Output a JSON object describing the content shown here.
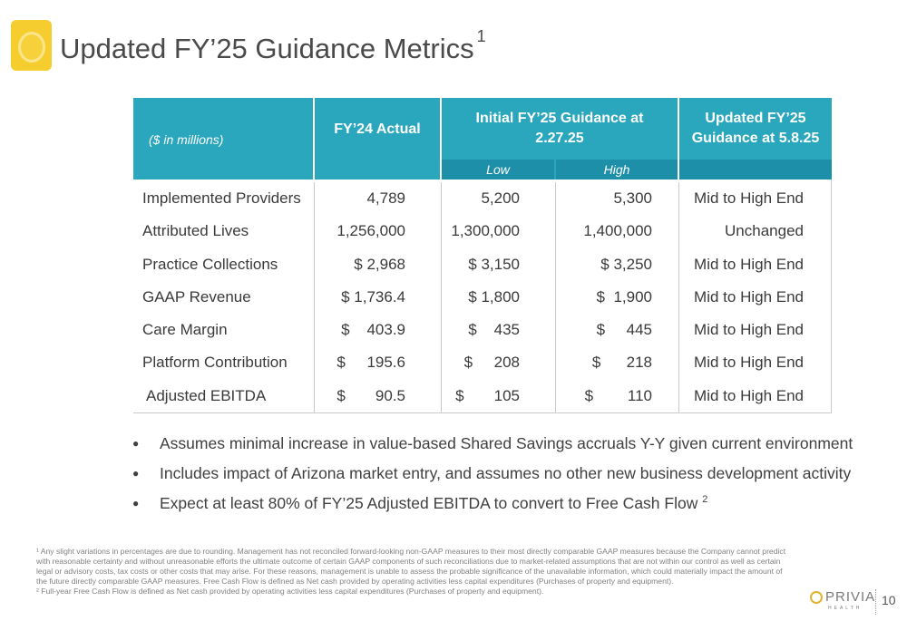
{
  "title": "Updated FY’25 Guidance Metrics",
  "title_sup": "1",
  "table": {
    "unit_label": "($ in millions)",
    "col_fy24": "FY’24 Actual",
    "col_initial": "Initial FY’25 Guidance at 2.27.25",
    "col_updated": "Updated FY’25 Guidance at 5.8.25",
    "sub_low": "Low",
    "sub_high": "High",
    "rows": [
      {
        "label": "Implemented Providers",
        "fy24": "4,789",
        "low": "5,200",
        "high": "5,300",
        "updated": "Mid to High End"
      },
      {
        "label": "Attributed Lives",
        "fy24": "1,256,000",
        "low": "1,300,000",
        "high": "1,400,000",
        "updated": "Unchanged"
      },
      {
        "label": "Practice Collections",
        "fy24": "$ 2,968",
        "low": "$ 3,150",
        "high": "$ 3,250",
        "updated": "Mid to High End"
      },
      {
        "label": "GAAP Revenue",
        "fy24": "$ 1,736.4",
        "low": "$ 1,800",
        "high": "$  1,900",
        "updated": "Mid to High End"
      },
      {
        "label": "Care Margin",
        "fy24": "$    403.9",
        "low": "$    435",
        "high": "$     445",
        "updated": "Mid to High End"
      },
      {
        "label": "Platform Contribution",
        "fy24": "$     195.6",
        "low": "$     208",
        "high": "$      218",
        "updated": "Mid to High End"
      },
      {
        "label": "Adjusted EBITDA",
        "fy24": "$       90.5",
        "low": "$       105",
        "high": "$        110",
        "updated": "Mid to High End"
      }
    ]
  },
  "bullets": [
    {
      "text": "Assumes minimal increase in value-based Shared Savings accruals Y-Y given current environment",
      "sup": ""
    },
    {
      "text": "Includes impact of Arizona market entry, and assumes no other new business development activity",
      "sup": ""
    },
    {
      "text": "Expect at least 80% of FY’25 Adjusted EBITDA to convert to Free Cash Flow",
      "sup": "2"
    }
  ],
  "footnotes": {
    "note1": "¹ Any slight variations in percentages are due to rounding. Management has not reconciled forward-looking non-GAAP measures to their most directly comparable GAAP measures because the Company cannot predict with reasonable certainty and without unreasonable efforts the ultimate outcome of certain GAAP components of such reconciliations due to market-related assumptions that are not within our control as well as certain legal or advisory costs, tax costs or other costs that may arise. For these reasons, management is unable to assess the probable significance of the unavailable information, which could materially impact the amount of the future directly comparable GAAP measures. Free Cash Flow is defined as Net cash provided by operating activities less capital expenditures (Purchases of property and equipment).",
    "note2": "² Full-year Free Cash Flow is defined as Net cash provided by operating activities less capital expenditures (Purchases of property and equipment)."
  },
  "brand": {
    "name": "PRIVIA",
    "sub": "HEALTH"
  },
  "page_number": "10",
  "colors": {
    "header_teal": "#2aa6bd",
    "subheader_teal": "#1d8fa8",
    "logo_yellow": "#f5cd2e"
  }
}
